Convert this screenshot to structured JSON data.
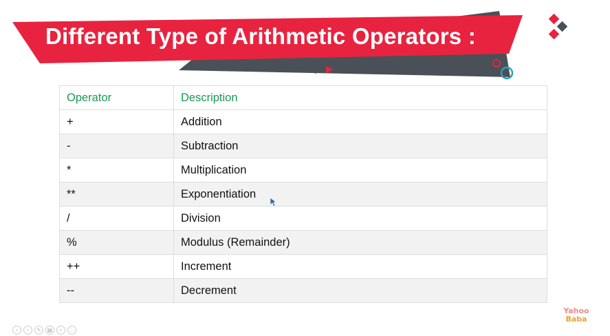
{
  "slide": {
    "title": "Different Type of Arithmetic Operators :",
    "colors": {
      "banner": "#e8233f",
      "banner_dark": "#4a5058",
      "header_text": "#179a55",
      "accent_teal": "#2aa0b8"
    }
  },
  "table": {
    "headers": [
      "Operator",
      "Description"
    ],
    "rows": [
      {
        "operator": "+",
        "description": "Addition"
      },
      {
        "operator": "-",
        "description": "Subtraction"
      },
      {
        "operator": "*",
        "description": "Multiplication"
      },
      {
        "operator": "**",
        "description": "Exponentiation"
      },
      {
        "operator": "/",
        "description": "Division"
      },
      {
        "operator": "%",
        "description": "Modulus (Remainder)"
      },
      {
        "operator": "++",
        "description": "Increment"
      },
      {
        "operator": "--",
        "description": "Decrement"
      }
    ]
  },
  "logo": {
    "line1": "Yahoo",
    "line2": "Baba"
  },
  "controls": [
    "prev-icon",
    "next-icon",
    "pen-icon",
    "slides-icon",
    "zoom-icon",
    "more-icon"
  ]
}
